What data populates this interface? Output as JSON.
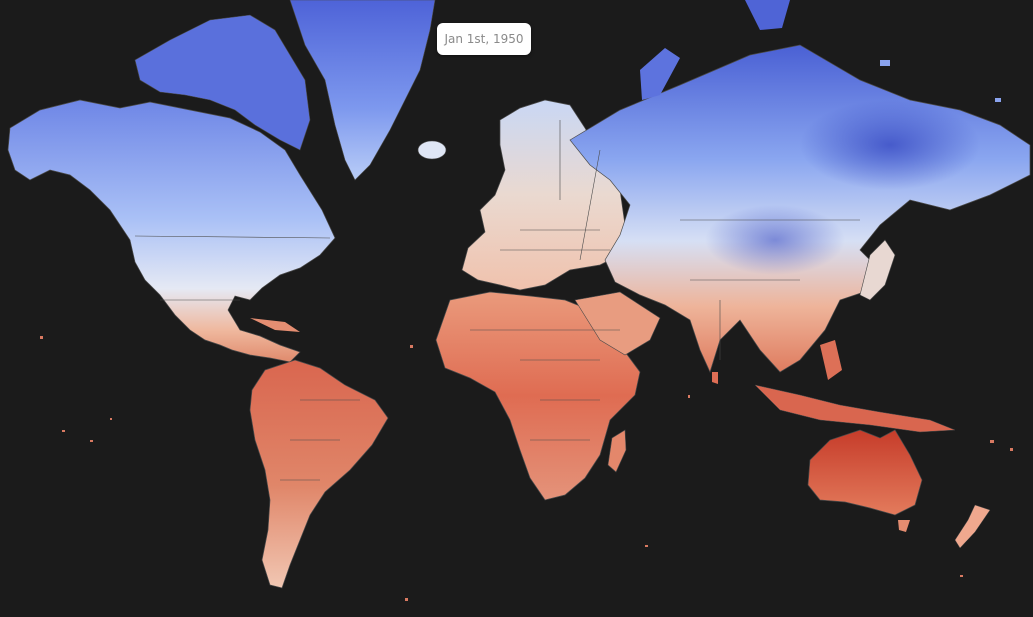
{
  "timeline": {
    "date_label": "Jan 1st, 1950"
  },
  "map": {
    "projection": "mercator",
    "background_color": "#1b1b1b",
    "border_color": "#3a3a3a",
    "color_scale": {
      "cold": "#3a4fc8",
      "cool": "#8aa8f2",
      "neutral": "#e6e9f2",
      "warm": "#e89578",
      "hot": "#c23b2a"
    }
  }
}
